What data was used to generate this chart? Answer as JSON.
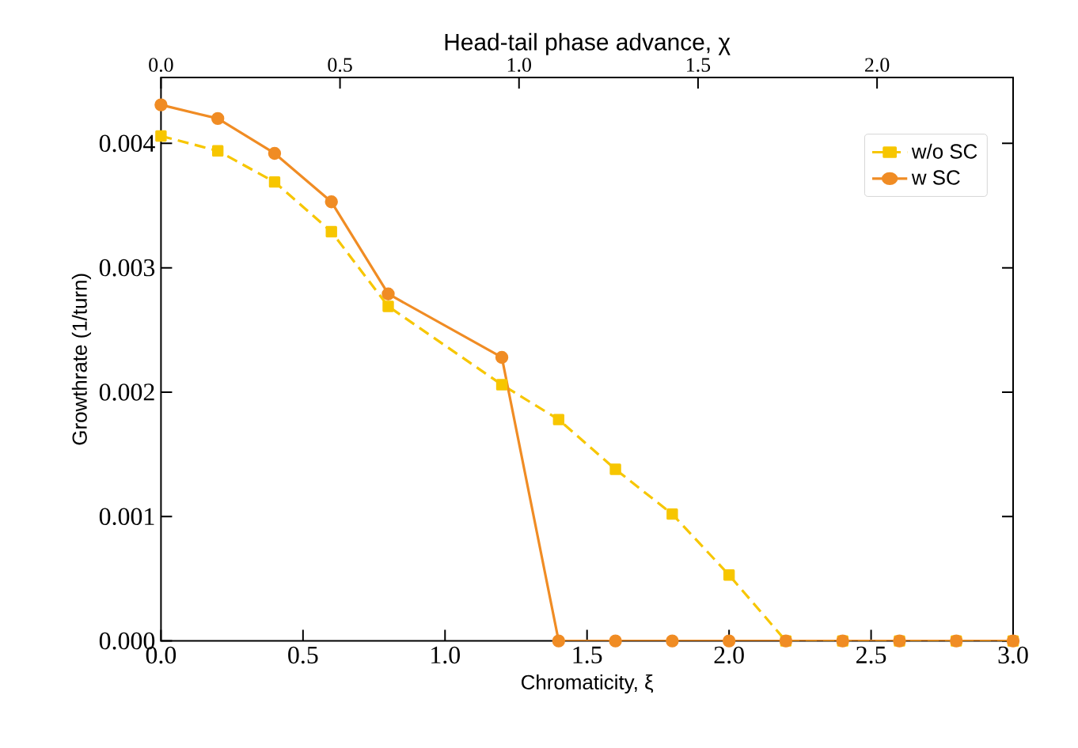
{
  "chart_data": {
    "type": "line",
    "xlabel": "Chromaticity, ξ",
    "x2label": "Head-tail phase advance, χ",
    "ylabel": "Growthrate (1/turn)",
    "x": [
      0.0,
      0.2,
      0.4,
      0.6,
      0.8,
      1.2,
      1.4,
      1.6,
      1.8,
      2.0,
      2.2,
      2.4,
      2.6,
      2.8,
      3.0
    ],
    "series": [
      {
        "name": "w/o SC",
        "color": "#f7c600",
        "marker": "square",
        "line_style": "dashed",
        "values": [
          0.00406,
          0.00394,
          0.00369,
          0.00329,
          0.00269,
          0.00206,
          0.00178,
          0.00138,
          0.00102,
          0.00053,
          0,
          0,
          0,
          0,
          0
        ]
      },
      {
        "name": "w SC",
        "color": "#f08c24",
        "marker": "circle",
        "line_style": "solid",
        "values": [
          0.00431,
          0.0042,
          0.00392,
          0.00353,
          0.00279,
          0.00228,
          0,
          0,
          0,
          0,
          0,
          0,
          0,
          0,
          0
        ]
      }
    ],
    "xlim": [
      0,
      3
    ],
    "xticks": [
      {
        "value": 0,
        "label": "0.0"
      },
      0.5,
      {
        "value": 1,
        "label": "1.0"
      },
      1.5,
      {
        "value": 2,
        "label": "2.0"
      },
      2.5,
      {
        "value": 3,
        "label": "3.0"
      }
    ],
    "ylim": [
      0,
      0.00453
    ],
    "yticks": [
      {
        "value": 0,
        "label": "0.000"
      },
      0.001,
      0.002,
      0.003,
      0.004
    ],
    "x2lim": [
      0,
      2.38
    ],
    "x2ticks": [
      {
        "value": 0,
        "label": "0.0"
      },
      0.5,
      {
        "value": 1,
        "label": "1.0"
      },
      1.5,
      {
        "value": 2,
        "label": "2.0"
      }
    ],
    "legend": "top right",
    "grid": false
  }
}
